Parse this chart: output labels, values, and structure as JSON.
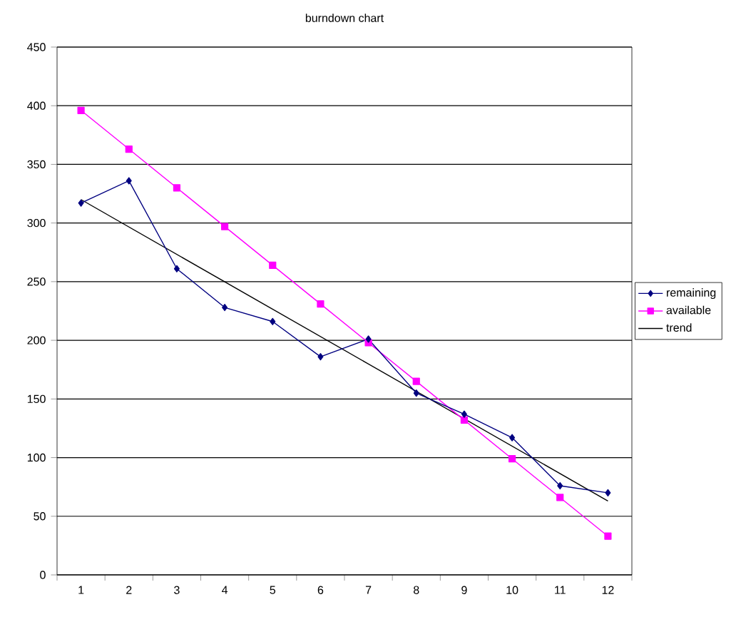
{
  "chart_data": {
    "type": "line",
    "title": "burndown chart",
    "x": [
      1,
      2,
      3,
      4,
      5,
      6,
      7,
      8,
      9,
      10,
      11,
      12
    ],
    "xlim": [
      0.5,
      12.5
    ],
    "xticks": [
      1,
      2,
      3,
      4,
      5,
      6,
      7,
      8,
      9,
      10,
      11,
      12
    ],
    "ylim": [
      0,
      450
    ],
    "yticks": [
      0,
      50,
      100,
      150,
      200,
      250,
      300,
      350,
      400,
      450
    ],
    "grid": "y",
    "legend": "right",
    "series": [
      {
        "name": "remaining",
        "color": "#000080",
        "marker": "diamond",
        "values": [
          317,
          336,
          261,
          228,
          216,
          186,
          201,
          155,
          137,
          117,
          76,
          70
        ]
      },
      {
        "name": "available",
        "color": "#ff00ff",
        "marker": "square",
        "values": [
          396,
          363,
          330,
          297,
          264,
          231,
          198,
          165,
          132,
          99,
          66,
          33
        ]
      },
      {
        "name": "trend",
        "color": "#000000",
        "marker": "none",
        "x": [
          1,
          12
        ],
        "values": [
          320,
          63
        ]
      }
    ]
  }
}
